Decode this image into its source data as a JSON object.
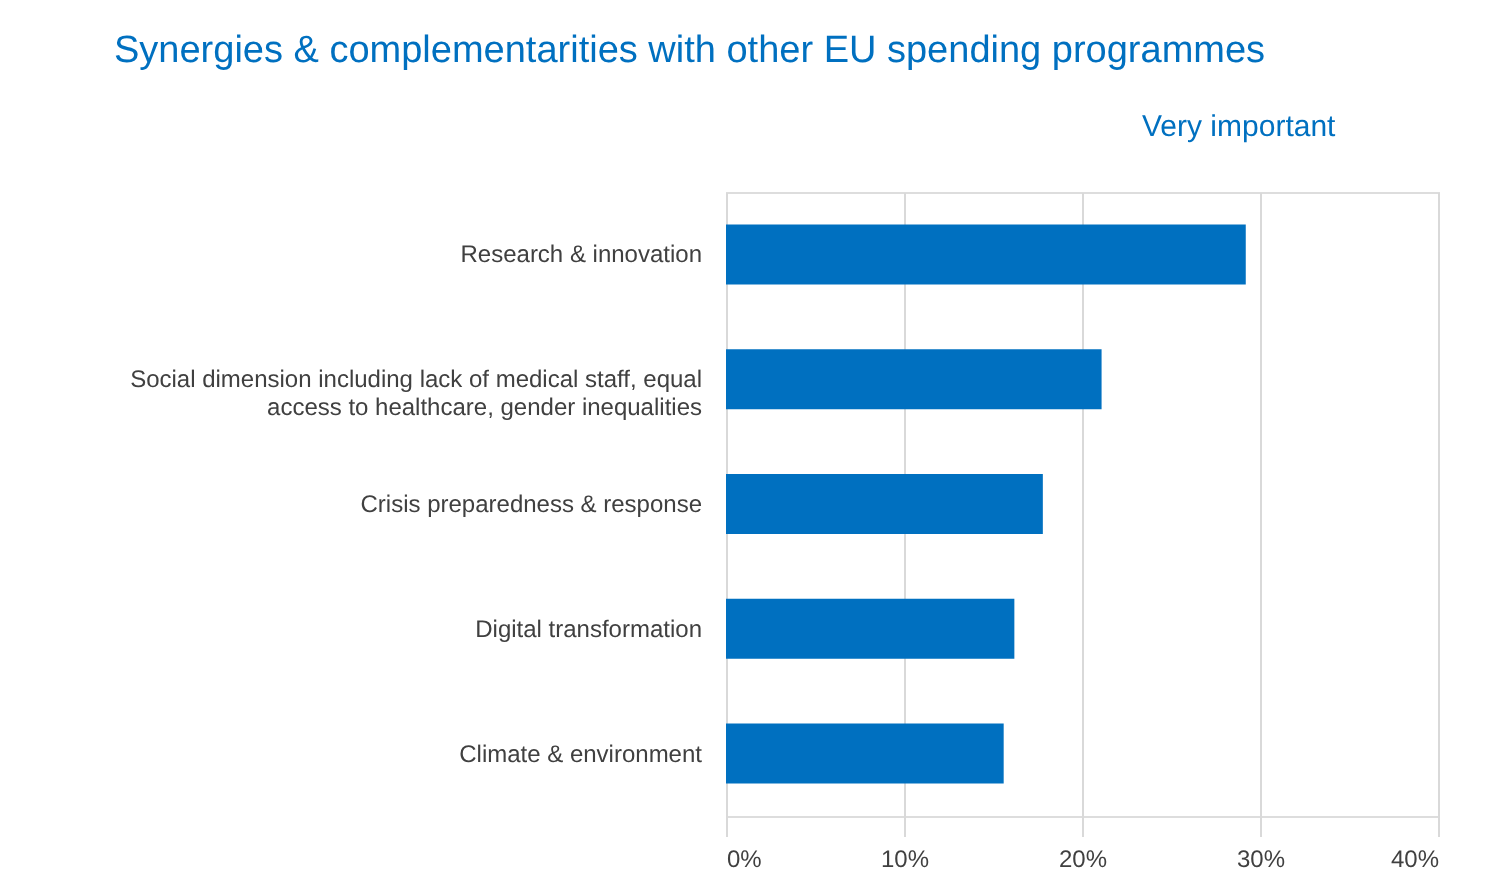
{
  "chart_data": {
    "type": "bar",
    "orientation": "horizontal",
    "title": "Synergies & complementarities with other EU spending programmes",
    "categories": [
      "Research & innovation",
      "Social dimension including lack of medical staff, equal access to healthcare, gender inequalities",
      "Crisis preparedness & response",
      "Digital transformation",
      "Climate & environment"
    ],
    "values": [
      29.2,
      21.1,
      17.8,
      16.2,
      15.6
    ],
    "color": "#0070c0",
    "xlim": [
      0,
      40
    ],
    "xticks": [
      {
        "value": 0,
        "label": "0%"
      },
      {
        "value": 10,
        "label": "10%"
      },
      {
        "value": 20,
        "label": "20%"
      },
      {
        "value": 30,
        "label": "30%"
      },
      {
        "value": 40,
        "label": "40%"
      }
    ],
    "grid": "x",
    "annotations": [
      "Very important"
    ]
  }
}
